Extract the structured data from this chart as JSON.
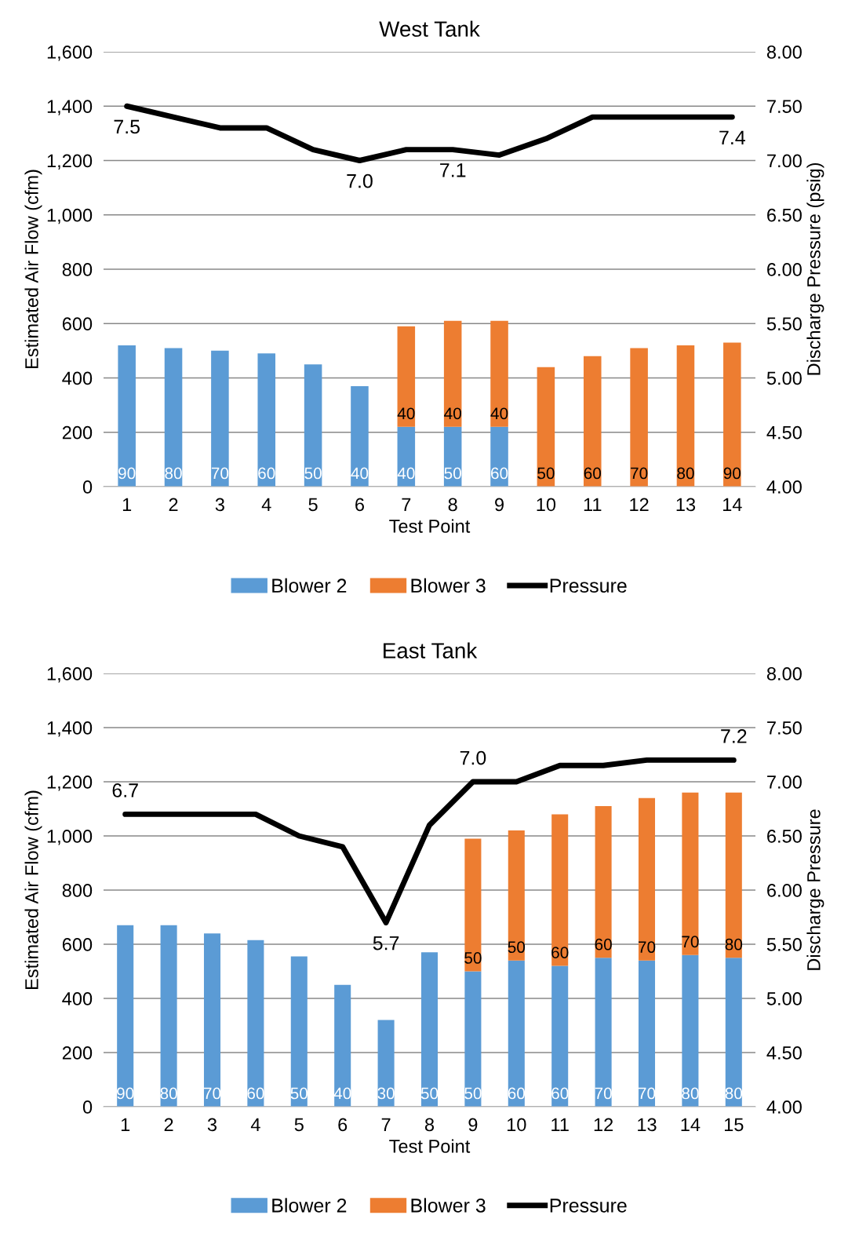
{
  "chart_data": [
    {
      "type": "bar",
      "title": "West Tank",
      "xlabel": "Test Point",
      "ylabel": "Estimated Air Flow (cfm)",
      "y2label": "Discharge Pressure (psig)",
      "stacked": true,
      "categories": [
        "1",
        "2",
        "3",
        "4",
        "5",
        "6",
        "7",
        "8",
        "9",
        "10",
        "11",
        "12",
        "13",
        "14"
      ],
      "series": [
        {
          "name": "Blower 2",
          "color": "#5b9bd5",
          "values": [
            520,
            510,
            500,
            490,
            450,
            370,
            220,
            220,
            220,
            null,
            null,
            null,
            null,
            null
          ]
        },
        {
          "name": "Blower 3",
          "color": "#ed7d31",
          "values": [
            null,
            null,
            null,
            null,
            null,
            null,
            370,
            390,
            390,
            440,
            480,
            510,
            520,
            530
          ]
        },
        {
          "name": "Pressure",
          "type": "line",
          "axis": "y2",
          "color": "#000000",
          "values": [
            7.5,
            7.4,
            7.3,
            7.3,
            7.1,
            7.0,
            7.1,
            7.1,
            7.05,
            7.2,
            7.4,
            7.4,
            7.4,
            7.4
          ],
          "value_labels": [
            "7.5",
            null,
            null,
            null,
            null,
            "7.0",
            null,
            "7.1",
            null,
            null,
            null,
            null,
            null,
            "7.4"
          ]
        }
      ],
      "annotations": [
        {
          "text": "90",
          "x": "1",
          "y": 0
        },
        {
          "text": "80",
          "x": "2",
          "y": 0
        },
        {
          "text": "70",
          "x": "3",
          "y": 0
        },
        {
          "text": "60",
          "x": "4",
          "y": 0
        },
        {
          "text": "50",
          "x": "5",
          "y": 0
        },
        {
          "text": "40",
          "x": "6",
          "y": 0
        },
        {
          "text": "40",
          "x": "7",
          "y": 0
        },
        {
          "text": "50",
          "x": "8",
          "y": 0
        },
        {
          "text": "60",
          "x": "9",
          "y": 0
        },
        {
          "text": "40",
          "x": "7",
          "y": 220
        },
        {
          "text": "40",
          "x": "8",
          "y": 220
        },
        {
          "text": "40",
          "x": "9",
          "y": 220
        },
        {
          "text": "50",
          "x": "10",
          "y": 0
        },
        {
          "text": "60",
          "x": "11",
          "y": 0
        },
        {
          "text": "70",
          "x": "12",
          "y": 0
        },
        {
          "text": "80",
          "x": "13",
          "y": 0
        },
        {
          "text": "90",
          "x": "14",
          "y": 0
        }
      ],
      "ylim": [
        0,
        1600
      ],
      "yticks": [
        0,
        {
          "value": 200,
          "label": "200"
        },
        {
          "value": 400,
          "label": "400"
        },
        {
          "value": 600,
          "label": "600"
        },
        {
          "value": 800,
          "label": "800"
        },
        {
          "value": 1000,
          "label": "1,000"
        },
        {
          "value": 1200,
          "label": "1,200"
        },
        {
          "value": 1400,
          "label": "1,400"
        },
        {
          "value": 1600,
          "label": "1,600"
        }
      ],
      "y2lim": [
        4,
        8
      ],
      "y2ticks": [
        {
          "value": 4,
          "label": "4.00"
        },
        {
          "value": 4.5,
          "label": "4.50"
        },
        {
          "value": 5,
          "label": "5.00"
        },
        {
          "value": 5.5,
          "label": "5.50"
        },
        {
          "value": 6,
          "label": "6.00"
        },
        {
          "value": 6.5,
          "label": "6.50"
        },
        {
          "value": 7,
          "label": "7.00"
        },
        {
          "value": 7.5,
          "label": "7.50"
        },
        {
          "value": 8,
          "label": "8.00"
        }
      ],
      "grid": "y",
      "legend": "bottom",
      "marker": "none",
      "line_style": "solid"
    },
    {
      "type": "bar",
      "title": "East Tank",
      "xlabel": "Test Point",
      "ylabel": "Estimated Air Flow (cfm)",
      "y2label": "Discharge Pressure",
      "stacked": true,
      "categories": [
        "1",
        "2",
        "3",
        "4",
        "5",
        "6",
        "7",
        "8",
        "9",
        "10",
        "11",
        "12",
        "13",
        "14",
        "15"
      ],
      "series": [
        {
          "name": "Blower 2",
          "color": "#5b9bd5",
          "values": [
            670,
            670,
            640,
            615,
            555,
            450,
            320,
            570,
            500,
            540,
            520,
            550,
            540,
            560,
            550
          ]
        },
        {
          "name": "Blower 3",
          "color": "#ed7d31",
          "values": [
            null,
            null,
            null,
            null,
            null,
            null,
            null,
            null,
            490,
            480,
            560,
            560,
            600,
            600,
            610
          ]
        },
        {
          "name": "Pressure",
          "type": "line",
          "axis": "y2",
          "color": "#000000",
          "values": [
            6.7,
            6.7,
            6.7,
            6.7,
            6.5,
            6.4,
            5.7,
            6.6,
            7.0,
            7.0,
            7.15,
            7.15,
            7.2,
            7.2,
            7.2
          ],
          "value_labels": [
            "6.7",
            null,
            null,
            null,
            null,
            null,
            "5.7",
            null,
            "7.0",
            null,
            null,
            null,
            null,
            null,
            "7.2"
          ]
        }
      ],
      "annotations": [
        {
          "text": "90",
          "x": "1",
          "y": 0
        },
        {
          "text": "80",
          "x": "2",
          "y": 0
        },
        {
          "text": "70",
          "x": "3",
          "y": 0
        },
        {
          "text": "60",
          "x": "4",
          "y": 0
        },
        {
          "text": "50",
          "x": "5",
          "y": 0
        },
        {
          "text": "40",
          "x": "6",
          "y": 0
        },
        {
          "text": "30",
          "x": "7",
          "y": 0
        },
        {
          "text": "50",
          "x": "8",
          "y": 0
        },
        {
          "text": "50",
          "x": "9",
          "y": 0
        },
        {
          "text": "60",
          "x": "10",
          "y": 0
        },
        {
          "text": "60",
          "x": "11",
          "y": 0
        },
        {
          "text": "70",
          "x": "12",
          "y": 0
        },
        {
          "text": "70",
          "x": "13",
          "y": 0
        },
        {
          "text": "80",
          "x": "14",
          "y": 0
        },
        {
          "text": "80",
          "x": "15",
          "y": 0
        },
        {
          "text": "50",
          "x": "9",
          "y": 500
        },
        {
          "text": "50",
          "x": "10",
          "y": 540
        },
        {
          "text": "60",
          "x": "11",
          "y": 520
        },
        {
          "text": "60",
          "x": "12",
          "y": 550
        },
        {
          "text": "70",
          "x": "13",
          "y": 540
        },
        {
          "text": "70",
          "x": "14",
          "y": 560
        },
        {
          "text": "80",
          "x": "15",
          "y": 550
        }
      ],
      "ylim": [
        0,
        1600
      ],
      "yticks": [
        0,
        {
          "value": 200,
          "label": "200"
        },
        {
          "value": 400,
          "label": "400"
        },
        {
          "value": 600,
          "label": "600"
        },
        {
          "value": 800,
          "label": "800"
        },
        {
          "value": 1000,
          "label": "1,000"
        },
        {
          "value": 1200,
          "label": "1,200"
        },
        {
          "value": 1400,
          "label": "1,400"
        },
        {
          "value": 1600,
          "label": "1,600"
        }
      ],
      "y2lim": [
        4,
        8
      ],
      "y2ticks": [
        {
          "value": 4,
          "label": "4.00"
        },
        {
          "value": 4.5,
          "label": "4.50"
        },
        {
          "value": 5,
          "label": "5.00"
        },
        {
          "value": 5.5,
          "label": "5.50"
        },
        {
          "value": 6,
          "label": "6.00"
        },
        {
          "value": 6.5,
          "label": "6.50"
        },
        {
          "value": 7,
          "label": "7.00"
        },
        {
          "value": 7.5,
          "label": "7.50"
        },
        {
          "value": 8,
          "label": "8.00"
        }
      ],
      "grid": "y",
      "legend": "bottom",
      "marker": "none",
      "line_style": "solid"
    }
  ]
}
